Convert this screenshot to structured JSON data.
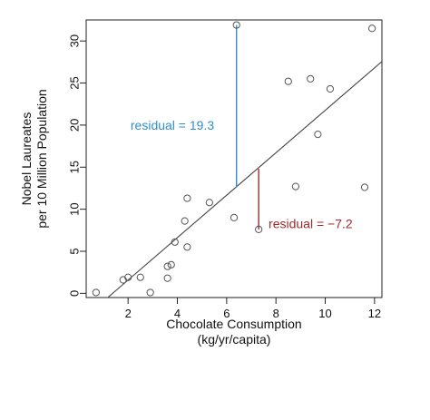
{
  "chart_data": {
    "type": "scatter",
    "xlabel": "Chocolate Consumption",
    "xlabel_line2": "(kg/yr/capita)",
    "ylabel": "Nobel Laureates",
    "ylabel_line2": "per 10 Million Population",
    "xlim": [
      0.3,
      12.3
    ],
    "ylim": [
      -0.5,
      32.5
    ],
    "x_ticks": [
      2,
      4,
      6,
      8,
      10,
      12
    ],
    "y_ticks": [
      0,
      5,
      10,
      15,
      20,
      25,
      30
    ],
    "grid": false,
    "points": [
      {
        "x": 0.7,
        "y": 0.1
      },
      {
        "x": 1.8,
        "y": 1.6
      },
      {
        "x": 2.0,
        "y": 1.9
      },
      {
        "x": 2.5,
        "y": 1.9
      },
      {
        "x": 2.9,
        "y": 0.1
      },
      {
        "x": 3.6,
        "y": 1.8
      },
      {
        "x": 3.6,
        "y": 3.2
      },
      {
        "x": 3.75,
        "y": 3.4
      },
      {
        "x": 3.9,
        "y": 6.1
      },
      {
        "x": 4.3,
        "y": 8.6
      },
      {
        "x": 4.4,
        "y": 11.3
      },
      {
        "x": 4.4,
        "y": 5.5
      },
      {
        "x": 5.3,
        "y": 10.8
      },
      {
        "x": 6.3,
        "y": 9.0
      },
      {
        "x": 6.4,
        "y": 31.9
      },
      {
        "x": 7.3,
        "y": 7.6
      },
      {
        "x": 8.5,
        "y": 25.2
      },
      {
        "x": 8.8,
        "y": 12.7
      },
      {
        "x": 9.4,
        "y": 25.5
      },
      {
        "x": 9.7,
        "y": 18.9
      },
      {
        "x": 10.2,
        "y": 24.3
      },
      {
        "x": 11.6,
        "y": 12.6
      },
      {
        "x": 11.9,
        "y": 31.5
      }
    ],
    "regression_line": {
      "x": [
        0.3,
        12.3
      ],
      "y": [
        -2.71,
        27.56
      ]
    },
    "residuals": [
      {
        "x": 6.4,
        "y_from": 31.9,
        "y_to": 12.6,
        "label": "residual = 19.3",
        "color": "#2f8fd0",
        "label_at": {
          "x": 2.1,
          "y": 20.0
        }
      },
      {
        "x": 7.3,
        "y_from": 7.6,
        "y_to": 14.8,
        "label": "residual = −7.2",
        "color": "#a3292b",
        "label_at": {
          "x": 7.7,
          "y": 8.3
        }
      }
    ],
    "point_color": "#555555",
    "line_color": "#444444"
  }
}
